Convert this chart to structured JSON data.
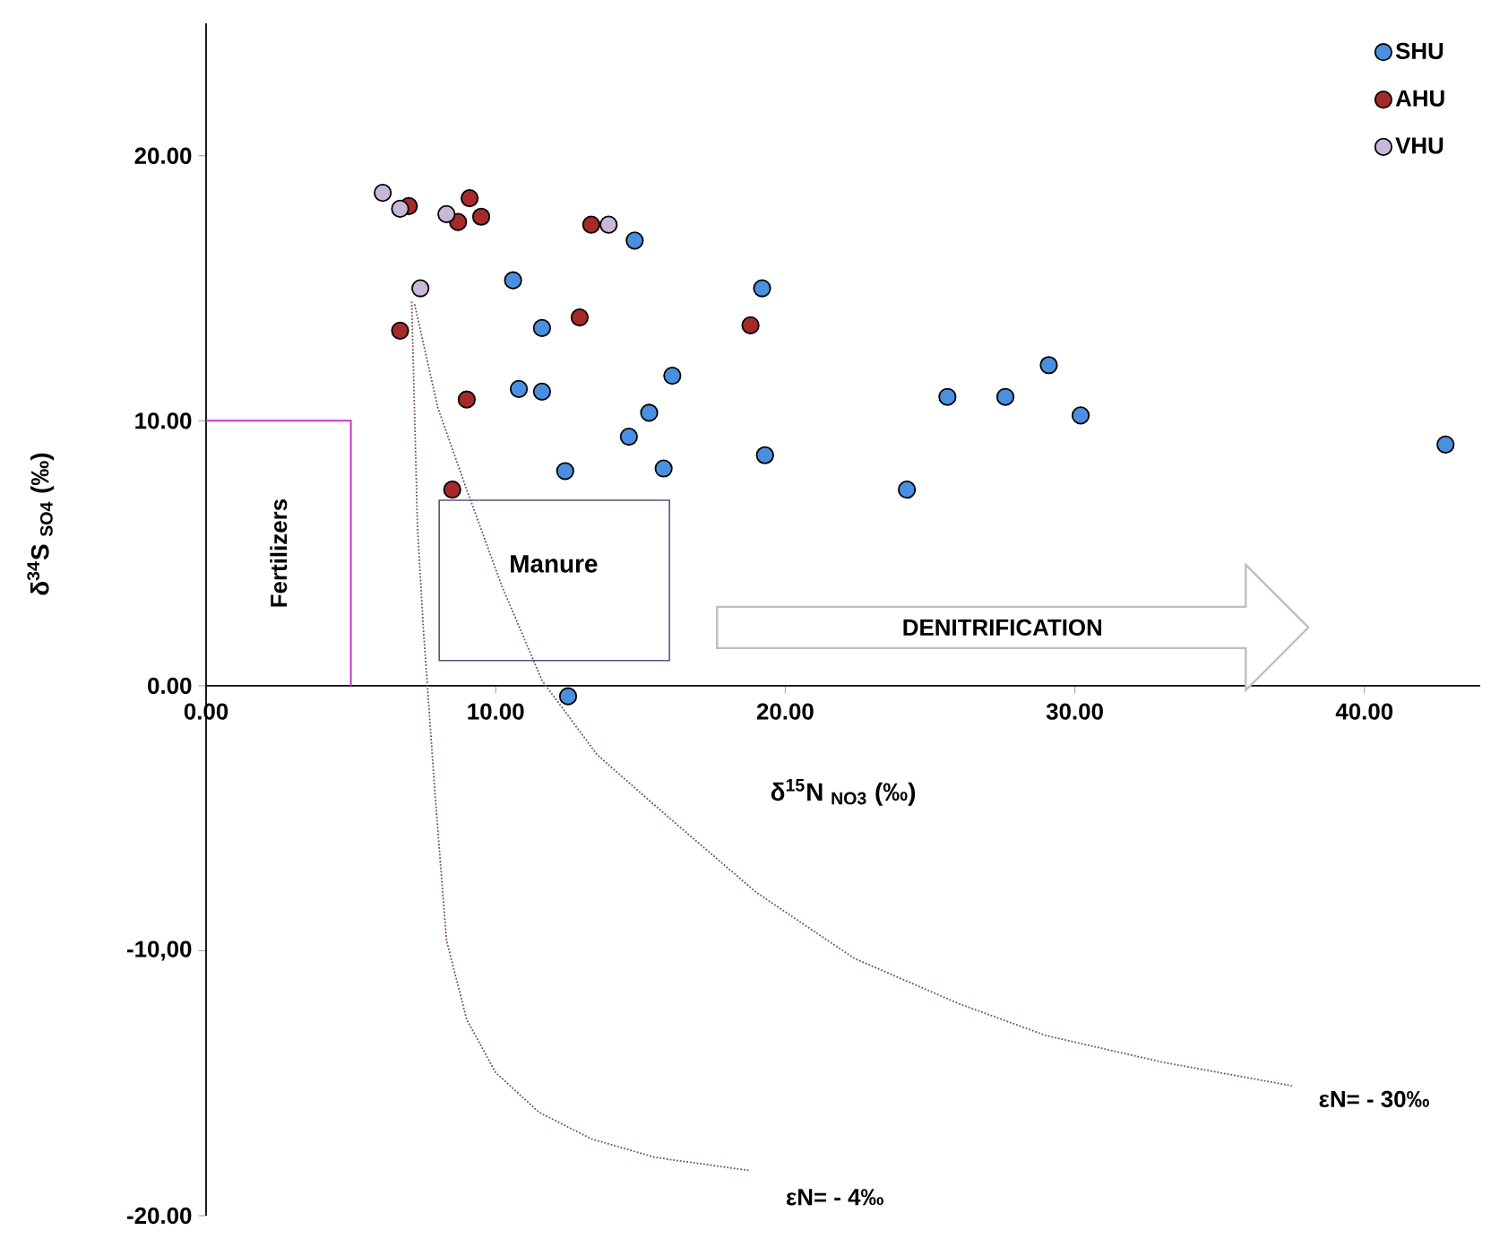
{
  "chart_data": {
    "type": "scatter",
    "xlabel": "δ$^{15}$N $_{NO3}$ (‰)",
    "ylabel": "δ$^{34}$S $_{SO4}$ (‰)",
    "xlim": [
      0,
      44
    ],
    "ylim": [
      -20,
      25
    ],
    "xticks": [
      {
        "value": 0,
        "label": "0.00"
      },
      {
        "value": 10,
        "label": "10.00"
      },
      {
        "value": 20,
        "label": "20.00"
      },
      {
        "value": 30,
        "label": "30.00"
      },
      {
        "value": 40,
        "label": "40.00"
      }
    ],
    "yticks": [
      {
        "value": -20,
        "label": "-20.00"
      },
      {
        "value": -10,
        "label": "-10,00"
      },
      {
        "value": 0,
        "label": "0.00"
      },
      {
        "value": 10,
        "label": "10.00"
      },
      {
        "value": 20,
        "label": "20.00"
      }
    ],
    "marker": "circle",
    "legend": "top right",
    "series": [
      {
        "name": "SHU",
        "color": "#4a8fe0",
        "x": [
          14.8,
          10.6,
          19.2,
          11.6,
          10.8,
          11.6,
          16.1,
          15.3,
          14.6,
          19.3,
          12.4,
          15.8,
          12.5,
          25.6,
          27.6,
          29.1,
          30.2,
          24.2,
          42.8
        ],
        "values": [
          16.8,
          15.3,
          15.0,
          13.5,
          11.2,
          11.1,
          11.7,
          10.3,
          9.4,
          8.7,
          8.1,
          8.2,
          -0.4,
          10.9,
          10.9,
          12.1,
          10.2,
          7.4,
          9.1
        ]
      },
      {
        "name": "AHU",
        "color": "#a52a2a",
        "x": [
          7.0,
          9.1,
          8.7,
          9.5,
          13.3,
          6.7,
          12.9,
          18.8,
          9.0,
          8.5
        ],
        "values": [
          18.1,
          18.4,
          17.5,
          17.7,
          17.4,
          13.4,
          13.9,
          13.6,
          10.8,
          7.4
        ]
      },
      {
        "name": "VHU",
        "color": "#c8b8d8",
        "x": [
          6.1,
          6.7,
          8.3,
          13.9,
          7.4
        ],
        "values": [
          18.6,
          18.0,
          17.8,
          17.4,
          15.0
        ]
      },
      {
        "type": "line",
        "marker": "none",
        "line_style": "dotted",
        "color": "#7a5050",
        "x": [
          7.1,
          7.3,
          7.5,
          7.9,
          8.3,
          9.0,
          10.0,
          11.5,
          13.3,
          15.5,
          18.8
        ],
        "values": [
          14.5,
          6.0,
          2.2,
          -4.0,
          -9.6,
          -12.6,
          -14.6,
          -16.1,
          -17.1,
          -17.8,
          -18.3
        ]
      },
      {
        "type": "line",
        "marker": "none",
        "line_style": "dotted",
        "color": "#7a5050",
        "x": [
          7.2,
          8.0,
          9.0,
          10.2,
          11.6,
          13.5,
          15.9,
          19.0,
          22.4,
          26.0,
          29.0,
          33.0,
          37.5
        ],
        "values": [
          14.4,
          10.5,
          7.4,
          3.8,
          0.2,
          -2.6,
          -4.9,
          -7.8,
          -10.3,
          -12.0,
          -13.2,
          -14.2,
          -15.1
        ]
      }
    ],
    "annotations": [
      "Fertilizers",
      "Manure",
      "DENITRIFICATION",
      "εN= - 30‰",
      "εN= - 4‰"
    ]
  }
}
